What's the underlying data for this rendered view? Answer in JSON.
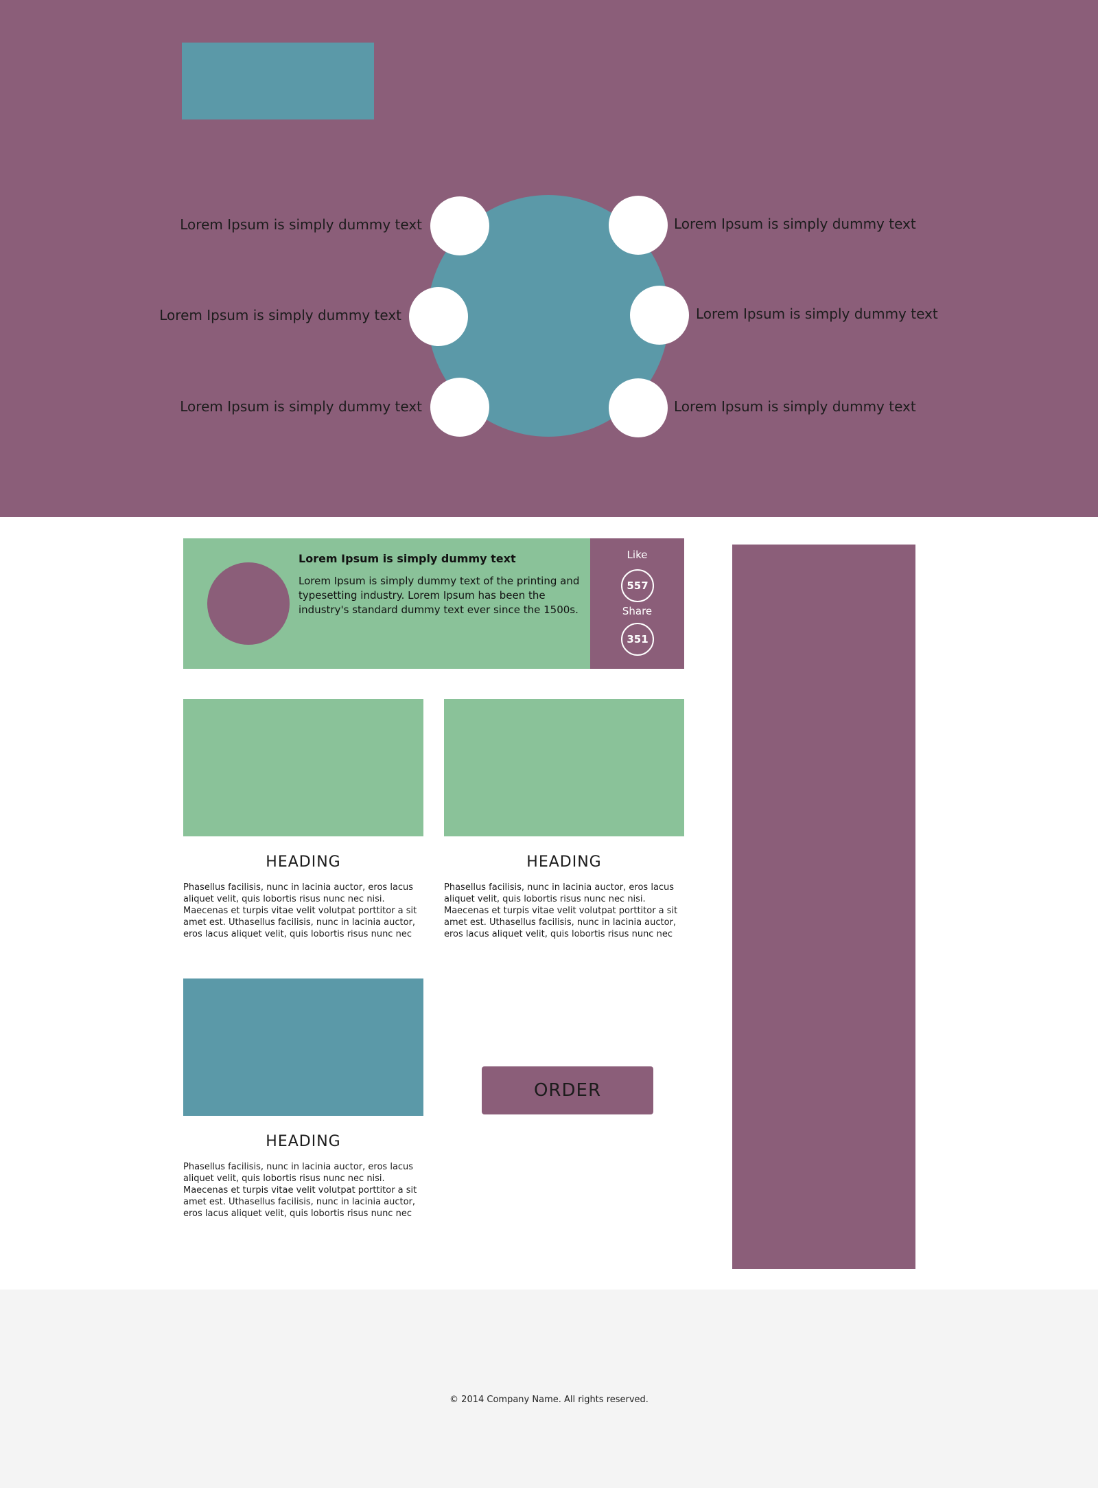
{
  "hero": {
    "items": [
      "Lorem Ipsum is simply dummy text",
      "Lorem Ipsum is simply dummy text",
      "Lorem Ipsum is simply dummy text",
      "Lorem Ipsum is simply dummy text",
      "Lorem Ipsum is simply dummy text",
      "Lorem Ipsum is simply dummy text"
    ]
  },
  "feature": {
    "title": "Lorem Ipsum is simply dummy text",
    "body": "Lorem Ipsum is simply dummy text of the printing and typesetting industry. Lorem Ipsum has been the industry's standard dummy text ever since the 1500s.",
    "like_label": "Like",
    "like_count": "557",
    "share_label": "Share",
    "share_count": "351"
  },
  "cards": [
    {
      "heading": "HEADING",
      "body": "Phasellus facilisis, nunc in lacinia auctor, eros lacus aliquet velit, quis lobortis risus nunc nec nisi. Maecenas et turpis vitae velit volutpat porttitor a sit amet est. Uthasellus facilisis, nunc in lacinia auctor, eros lacus aliquet velit, quis lobortis risus nunc nec"
    },
    {
      "heading": "HEADING",
      "body": "Phasellus facilisis, nunc in lacinia auctor, eros lacus aliquet velit, quis lobortis risus nunc nec nisi. Maecenas et turpis vitae velit volutpat porttitor a sit amet est. Uthasellus facilisis, nunc in lacinia auctor, eros lacus aliquet velit, quis lobortis risus nunc nec"
    },
    {
      "heading": "HEADING",
      "body": "Phasellus facilisis, nunc in lacinia auctor, eros lacus aliquet velit, quis lobortis risus nunc nec nisi. Maecenas et turpis vitae velit volutpat porttitor a sit amet est. Uthasellus facilisis, nunc in lacinia auctor, eros lacus aliquet velit, quis lobortis risus nunc nec"
    }
  ],
  "order": {
    "label": "ORDER"
  },
  "footer": {
    "copyright": "© 2014 Company Name. All rights reserved."
  },
  "colors": {
    "purple": "#8b5e79",
    "teal": "#5b99a8",
    "green": "#8ac299",
    "footer_bg": "#f4f4f4"
  }
}
